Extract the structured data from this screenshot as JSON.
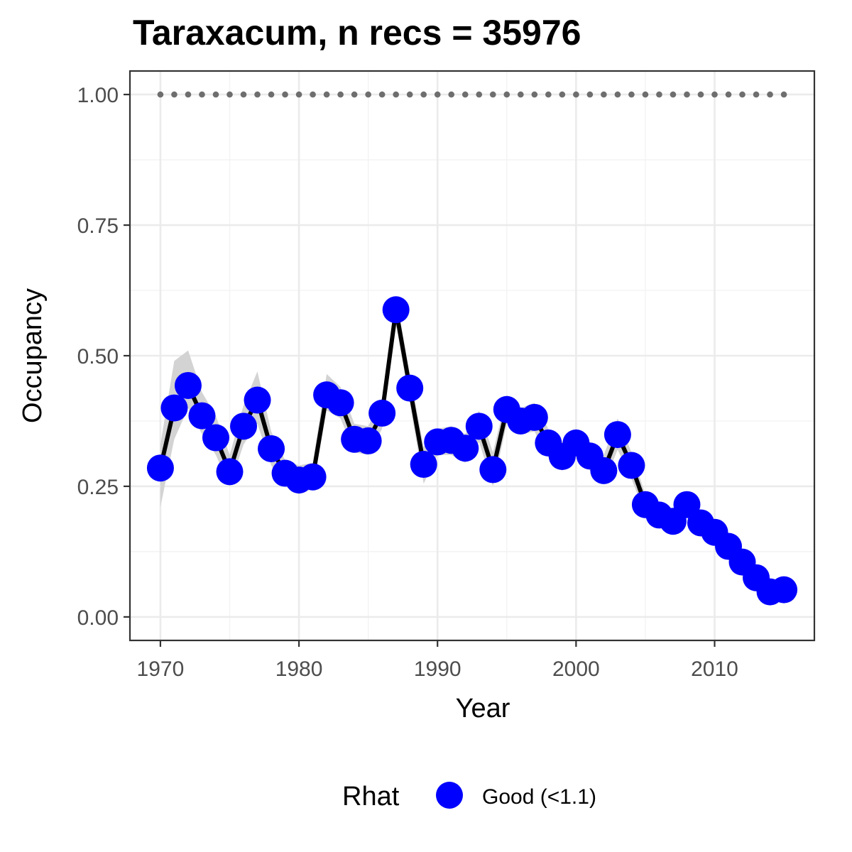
{
  "chart_data": {
    "type": "line",
    "title": "Taraxacum, n recs = 35976",
    "xlabel": "Year",
    "ylabel": "Occupancy",
    "xlim": [
      1967.8,
      2017.2
    ],
    "ylim": [
      -0.045,
      1.045
    ],
    "x_ticks": [
      1970,
      1980,
      1990,
      2000,
      2010
    ],
    "x_tick_labels": [
      "1970",
      "1980",
      "1990",
      "2000",
      "2010"
    ],
    "y_ticks": [
      0,
      0.25,
      0.5,
      0.75,
      1.0
    ],
    "y_tick_labels": [
      "0.00",
      "0.25",
      "0.50",
      "0.75",
      "1.00"
    ],
    "grid": true,
    "legend": {
      "position": "bottom",
      "title": "Rhat",
      "entries": [
        {
          "label": "Good (<1.1)",
          "color": "#0000ff"
        }
      ]
    },
    "colors": {
      "points": "#0000ff",
      "line": "#000000",
      "ribbon": "#d3d3d3",
      "reference_points": "#6e6e6e"
    },
    "x": [
      1970,
      1971,
      1972,
      1973,
      1974,
      1975,
      1976,
      1977,
      1978,
      1979,
      1980,
      1981,
      1982,
      1983,
      1984,
      1985,
      1986,
      1987,
      1988,
      1989,
      1990,
      1991,
      1992,
      1993,
      1994,
      1995,
      1996,
      1997,
      1998,
      1999,
      2000,
      2001,
      2002,
      2003,
      2004,
      2005,
      2006,
      2007,
      2008,
      2009,
      2010,
      2011,
      2012,
      2013,
      2014,
      2015
    ],
    "series": [
      {
        "values": [
          0.285,
          0.4,
          0.443,
          0.385,
          0.343,
          0.278,
          0.365,
          0.415,
          0.322,
          0.275,
          0.262,
          0.268,
          0.425,
          0.41,
          0.34,
          0.337,
          0.39,
          0.588,
          0.438,
          0.292,
          0.335,
          0.338,
          0.323,
          0.365,
          0.282,
          0.397,
          0.375,
          0.382,
          0.333,
          0.307,
          0.333,
          0.308,
          0.28,
          0.349,
          0.29,
          0.215,
          0.195,
          0.183,
          0.215,
          0.18,
          0.162,
          0.135,
          0.105,
          0.075,
          0.048,
          0.052
        ],
        "lower": [
          0.21,
          0.34,
          0.4,
          0.35,
          0.31,
          0.25,
          0.33,
          0.37,
          0.29,
          0.25,
          0.235,
          0.245,
          0.395,
          0.38,
          0.315,
          0.31,
          0.36,
          0.56,
          0.41,
          0.255,
          0.31,
          0.31,
          0.295,
          0.335,
          0.25,
          0.37,
          0.35,
          0.355,
          0.305,
          0.28,
          0.305,
          0.28,
          0.255,
          0.32,
          0.265,
          0.195,
          0.175,
          0.165,
          0.195,
          0.16,
          0.145,
          0.118,
          0.09,
          0.062,
          0.035,
          0.038
        ],
        "upper": [
          0.33,
          0.49,
          0.51,
          0.43,
          0.385,
          0.31,
          0.405,
          0.47,
          0.355,
          0.3,
          0.29,
          0.295,
          0.465,
          0.44,
          0.37,
          0.365,
          0.42,
          0.615,
          0.465,
          0.325,
          0.36,
          0.365,
          0.35,
          0.395,
          0.315,
          0.425,
          0.4,
          0.41,
          0.36,
          0.335,
          0.36,
          0.335,
          0.31,
          0.38,
          0.315,
          0.235,
          0.215,
          0.2,
          0.235,
          0.2,
          0.18,
          0.152,
          0.12,
          0.088,
          0.06,
          0.066
        ]
      },
      {
        "values": [
          1,
          1,
          1,
          1,
          1,
          1,
          1,
          1,
          1,
          1,
          1,
          1,
          1,
          1,
          1,
          1,
          1,
          1,
          1,
          1,
          1,
          1,
          1,
          1,
          1,
          1,
          1,
          1,
          1,
          1,
          1,
          1,
          1,
          1,
          1,
          1,
          1,
          1,
          1,
          1,
          1,
          1,
          1,
          1,
          1,
          1
        ]
      }
    ]
  }
}
